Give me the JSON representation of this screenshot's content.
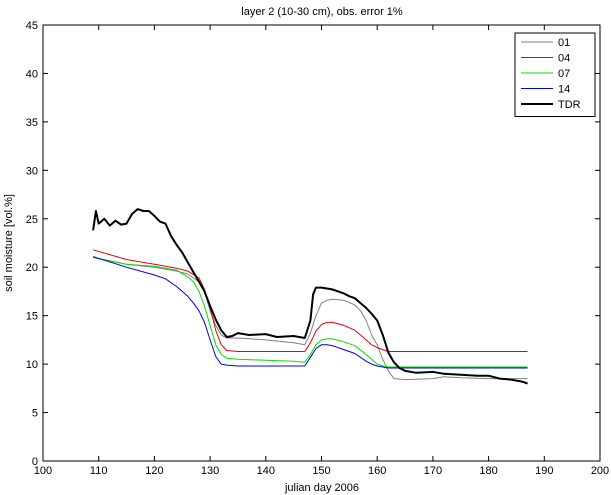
{
  "chart_data": {
    "type": "line",
    "title": "layer 2 (10-30 cm), obs. error 1%",
    "xlabel": "julian day 2006",
    "ylabel": "soil moisture [vol.%]",
    "xlim": [
      100,
      200
    ],
    "ylim": [
      0,
      45
    ],
    "xticks": [
      "100",
      "110",
      "120",
      "130",
      "140",
      "150",
      "160",
      "170",
      "180",
      "190",
      "200"
    ],
    "yticks": [
      "0",
      "5",
      "10",
      "15",
      "20",
      "25",
      "30",
      "35",
      "40",
      "45"
    ],
    "grid": false,
    "legend_position": "top-right",
    "series": [
      {
        "name": "01",
        "color": "#808080",
        "x": [
          109,
          115,
          120,
          124,
          126,
          128,
          129,
          130,
          131,
          132,
          133,
          135,
          140,
          145,
          147,
          148,
          149,
          150,
          151,
          152,
          154,
          156,
          157,
          158,
          159,
          160,
          161,
          162,
          163,
          165,
          170,
          172,
          175,
          180,
          185,
          187
        ],
        "y": [
          21.0,
          20.3,
          20.0,
          19.6,
          19.3,
          18.5,
          17.5,
          15.5,
          14.0,
          13.0,
          12.7,
          12.7,
          12.5,
          12.2,
          12.0,
          13.2,
          15.0,
          16.3,
          16.6,
          16.7,
          16.6,
          16.1,
          15.5,
          14.5,
          13.0,
          12.0,
          10.5,
          9.3,
          8.5,
          8.4,
          8.5,
          8.7,
          8.6,
          8.5,
          8.5,
          8.5
        ]
      },
      {
        "name": "04",
        "color": "#e8000b",
        "x": [
          109,
          115,
          120,
          124,
          126,
          128,
          129,
          130,
          131,
          132,
          133,
          135,
          140,
          145,
          147,
          148,
          149,
          150,
          151,
          152,
          154,
          156,
          157,
          158,
          159,
          160,
          161,
          162,
          165,
          170,
          175,
          180,
          185,
          187
        ],
        "y": [
          21.8,
          20.8,
          20.3,
          19.9,
          19.6,
          18.9,
          17.7,
          15.8,
          13.5,
          12.0,
          11.4,
          11.3,
          11.3,
          11.3,
          11.3,
          12.2,
          13.4,
          14.1,
          14.3,
          14.3,
          14.0,
          13.5,
          13.0,
          12.5,
          12.0,
          11.7,
          11.5,
          11.3,
          11.3,
          11.3,
          11.3,
          11.3,
          11.3,
          11.3
        ]
      },
      {
        "name": "07",
        "color": "#00e000",
        "x": [
          109,
          115,
          120,
          124,
          126,
          127,
          128,
          129,
          130,
          131,
          132,
          133,
          135,
          140,
          145,
          147,
          148,
          149,
          150,
          151,
          152,
          154,
          156,
          158,
          159,
          160,
          161,
          162,
          165,
          170,
          175,
          180,
          185,
          187
        ],
        "y": [
          21.0,
          20.3,
          20.1,
          19.7,
          19.0,
          18.5,
          17.5,
          16.0,
          14.0,
          12.0,
          11.0,
          10.6,
          10.5,
          10.4,
          10.3,
          10.2,
          11.0,
          12.0,
          12.5,
          12.6,
          12.6,
          12.3,
          11.9,
          11.0,
          10.5,
          10.0,
          9.8,
          9.7,
          9.7,
          9.7,
          9.7,
          9.7,
          9.7,
          9.7
        ]
      },
      {
        "name": "14",
        "color": "#0000e0",
        "x": [
          109,
          115,
          120,
          122,
          124,
          125,
          126,
          127,
          128,
          129,
          130,
          131,
          132,
          133,
          135,
          140,
          145,
          147,
          148,
          149,
          150,
          151,
          152,
          154,
          156,
          158,
          159,
          160,
          161,
          162,
          165,
          170,
          175,
          180,
          185,
          187
        ],
        "y": [
          21.1,
          20.0,
          19.2,
          18.8,
          18.0,
          17.5,
          17.0,
          16.3,
          15.5,
          14.3,
          12.5,
          10.8,
          10.0,
          9.9,
          9.8,
          9.8,
          9.8,
          9.8,
          10.7,
          11.6,
          12.0,
          12.0,
          11.9,
          11.5,
          11.1,
          10.3,
          10.0,
          9.8,
          9.7,
          9.6,
          9.6,
          9.6,
          9.6,
          9.6,
          9.6,
          9.6
        ]
      },
      {
        "name": "TDR",
        "color": "#000000",
        "x": [
          109,
          109.5,
          110,
          111,
          112,
          113,
          114,
          115,
          116,
          117,
          118,
          119,
          120,
          121,
          122,
          123,
          124,
          125,
          126,
          127,
          128,
          129,
          130,
          131,
          132,
          133,
          134,
          135,
          137,
          140,
          142,
          145,
          147,
          148,
          148.5,
          149,
          150,
          151,
          152,
          153,
          154,
          155,
          156,
          157,
          158,
          159,
          160,
          161,
          162,
          163,
          164,
          165,
          167,
          170,
          172,
          175,
          178,
          180,
          182,
          184,
          186,
          187
        ],
        "y": [
          23.8,
          25.8,
          24.5,
          25.0,
          24.3,
          24.8,
          24.4,
          24.5,
          25.5,
          26.0,
          25.8,
          25.8,
          25.3,
          24.7,
          24.5,
          23.2,
          22.3,
          21.5,
          20.5,
          19.5,
          18.5,
          17.5,
          16.0,
          14.6,
          13.5,
          12.8,
          12.9,
          13.2,
          13.0,
          13.1,
          12.8,
          12.9,
          12.7,
          14.5,
          17.2,
          17.9,
          17.9,
          17.8,
          17.7,
          17.5,
          17.3,
          17.0,
          16.8,
          16.3,
          15.8,
          15.2,
          14.5,
          13.0,
          11.2,
          10.2,
          9.6,
          9.3,
          9.1,
          9.2,
          9.0,
          8.9,
          8.8,
          8.8,
          8.5,
          8.4,
          8.2,
          8.0
        ]
      }
    ]
  }
}
